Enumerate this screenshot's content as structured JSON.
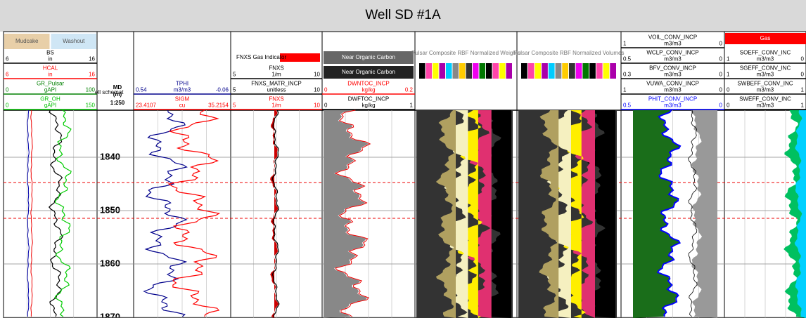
{
  "title": "Well SD #1A",
  "tracks": [
    {
      "labels": [
        "Mudcake",
        "Washout"
      ],
      "curves": [
        {
          "name": "BS",
          "color": "#000000",
          "left": "6",
          "unit": "in",
          "right": "16"
        },
        {
          "name": "HCAL",
          "color": "#ff0000",
          "left": "6",
          "unit": "in",
          "right": "16"
        },
        {
          "name": "GR_Pulsar",
          "color": "#008000",
          "left": "0",
          "unit": "gAPI",
          "right": "100"
        },
        {
          "name": "GR_OH",
          "color": "#00c000",
          "left": "0",
          "unit": "gAPI",
          "right": "150"
        }
      ]
    },
    {
      "labels": [
        "ell schemat",
        "MD",
        "(m)",
        "1:250"
      ],
      "depths": [
        1840,
        1850,
        1860,
        1870
      ],
      "curves": []
    },
    {
      "labels": [],
      "curves": [
        {
          "name": "TPHI",
          "color": "#00008b",
          "left": "0.54",
          "unit": "m3/m3",
          "right": "-0.06"
        },
        {
          "name": "SIGM",
          "color": "#ff0000",
          "left": "23.4107",
          "unit": "cu",
          "right": "35.2154"
        }
      ]
    },
    {
      "labels": [
        "FNXS Gas Indicator"
      ],
      "curves": [
        {
          "name": "FNXS",
          "color": "#000000",
          "left": "5",
          "unit": "1/m",
          "right": "10"
        },
        {
          "name": "FNXS_MATR_INCP",
          "color": "#000000",
          "left": "5",
          "unit": "unitless",
          "right": "10"
        },
        {
          "name": "FNXS",
          "color": "#ff0000",
          "left": "5",
          "unit": "1/m",
          "right": "10"
        }
      ]
    },
    {
      "labels": [
        "Near Organic Carbon",
        "Near Organic Carbon"
      ],
      "curves": [
        {
          "name": "DWNTOC_INCP",
          "color": "#ff0000",
          "left": "0",
          "unit": "kg/kg",
          "right": "0.2"
        },
        {
          "name": "DWFTOC_INCP",
          "color": "#000000",
          "left": "0",
          "unit": "kg/kg",
          "right": "1"
        }
      ]
    },
    {
      "labels": [
        "Pulsar Composite RBF Normalized Weights"
      ],
      "curves": []
    },
    {
      "labels": [
        "Pulsar Composite RBF Normalized Volumes"
      ],
      "curves": []
    },
    {
      "labels": [],
      "curves": [
        {
          "name": "VOIL_CONV_INCP",
          "color": "#000000",
          "left": "1",
          "unit": "m3/m3",
          "right": "0"
        },
        {
          "name": "WCLP_CONV_INCP",
          "color": "#000000",
          "left": "0.5",
          "unit": "m3/m3",
          "right": "0"
        },
        {
          "name": "BFV_CONV_INCP",
          "color": "#000000",
          "left": "0.3",
          "unit": "m3/m3",
          "right": "0"
        },
        {
          "name": "VUWA_CONV_INCP",
          "color": "#000000",
          "left": "1",
          "unit": "m3/m3",
          "right": "0"
        },
        {
          "name": "PHIT_CONV_INCP",
          "color": "#0000ff",
          "left": "0.5",
          "unit": "m3/m3",
          "right": "0"
        }
      ]
    },
    {
      "labels": [
        "Gas"
      ],
      "curves": [
        {
          "name": "SOEFF_CONV_INC",
          "color": "#000000",
          "left": "1",
          "unit": "m3/m3",
          "right": "0"
        },
        {
          "name": "SGEFF_CONV_INC",
          "color": "#000000",
          "left": "1",
          "unit": "m3/m3",
          "right": "0"
        },
        {
          "name": "SWBEFF_CONV_INC",
          "color": "#000000",
          "left": "0",
          "unit": "m3/m3",
          "right": "1"
        },
        {
          "name": "SWEFF_CONV_INC",
          "color": "#000000",
          "left": "0",
          "unit": "m3/m3",
          "right": "1"
        }
      ]
    }
  ]
}
